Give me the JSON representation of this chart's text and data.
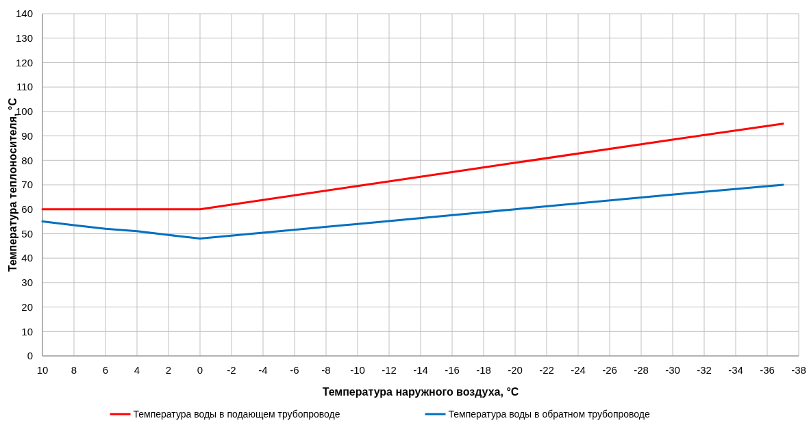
{
  "chart_data": {
    "type": "line",
    "xlabel": "Температура наружного воздуха, °C",
    "ylabel": "Температура теплоносителя, °C",
    "xlim": [
      10,
      -38
    ],
    "xticks": [
      10,
      8,
      6,
      4,
      2,
      0,
      -2,
      -4,
      -6,
      -8,
      -10,
      -12,
      -14,
      -16,
      -18,
      -20,
      -22,
      -24,
      -26,
      -28,
      -30,
      -32,
      -34,
      -36,
      -38
    ],
    "ylim": [
      0,
      140
    ],
    "yticks": [
      0,
      10,
      20,
      30,
      40,
      50,
      60,
      70,
      80,
      90,
      100,
      110,
      120,
      130,
      140
    ],
    "grid": true,
    "legend": "bottom",
    "marker": "none",
    "line_style": "solid",
    "series": [
      {
        "name": "Температура воды в подающем трубопроводе",
        "color": "#ff0000",
        "x": [
          10,
          0,
          -10,
          -20,
          -30,
          -37
        ],
        "values": [
          60,
          60,
          69.5,
          79,
          88.5,
          95
        ]
      },
      {
        "name": "Температура воды в обратном трубопроводе",
        "color": "#0070c0",
        "x": [
          10,
          8,
          6,
          4,
          2,
          0,
          -10,
          -20,
          -30,
          -37
        ],
        "values": [
          55,
          53.5,
          52,
          51,
          49.5,
          48,
          54,
          60,
          66,
          70
        ]
      }
    ]
  }
}
